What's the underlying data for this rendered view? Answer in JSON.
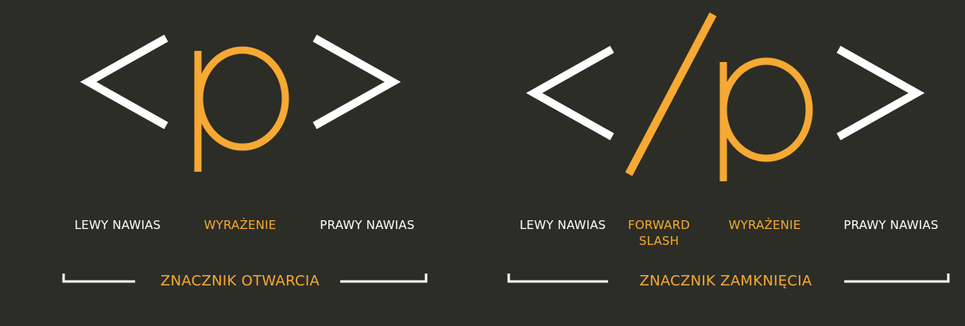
{
  "colors": {
    "background": "#2c2d27",
    "white": "#ffffff",
    "accent": "#f6a933"
  },
  "opening_tag": {
    "glyphs": {
      "left_bracket": "<",
      "expression": "p",
      "right_bracket": ">"
    },
    "labels": {
      "left_bracket": "LEWY NAWIAS",
      "expression": "WYRAŻENIE",
      "right_bracket": "PRAWY NAWIAS"
    },
    "title": "ZNACZNIK OTWARCIA"
  },
  "closing_tag": {
    "glyphs": {
      "left_bracket": "<",
      "slash": "/",
      "expression": "p",
      "right_bracket": ">"
    },
    "labels": {
      "left_bracket": "LEWY NAWIAS",
      "slash_line1": "FORWARD",
      "slash_line2": "SLASH",
      "expression": "WYRAŻENIE",
      "right_bracket": "PRAWY NAWIAS"
    },
    "title": "ZNACZNIK ZAMKNIĘCIA"
  }
}
